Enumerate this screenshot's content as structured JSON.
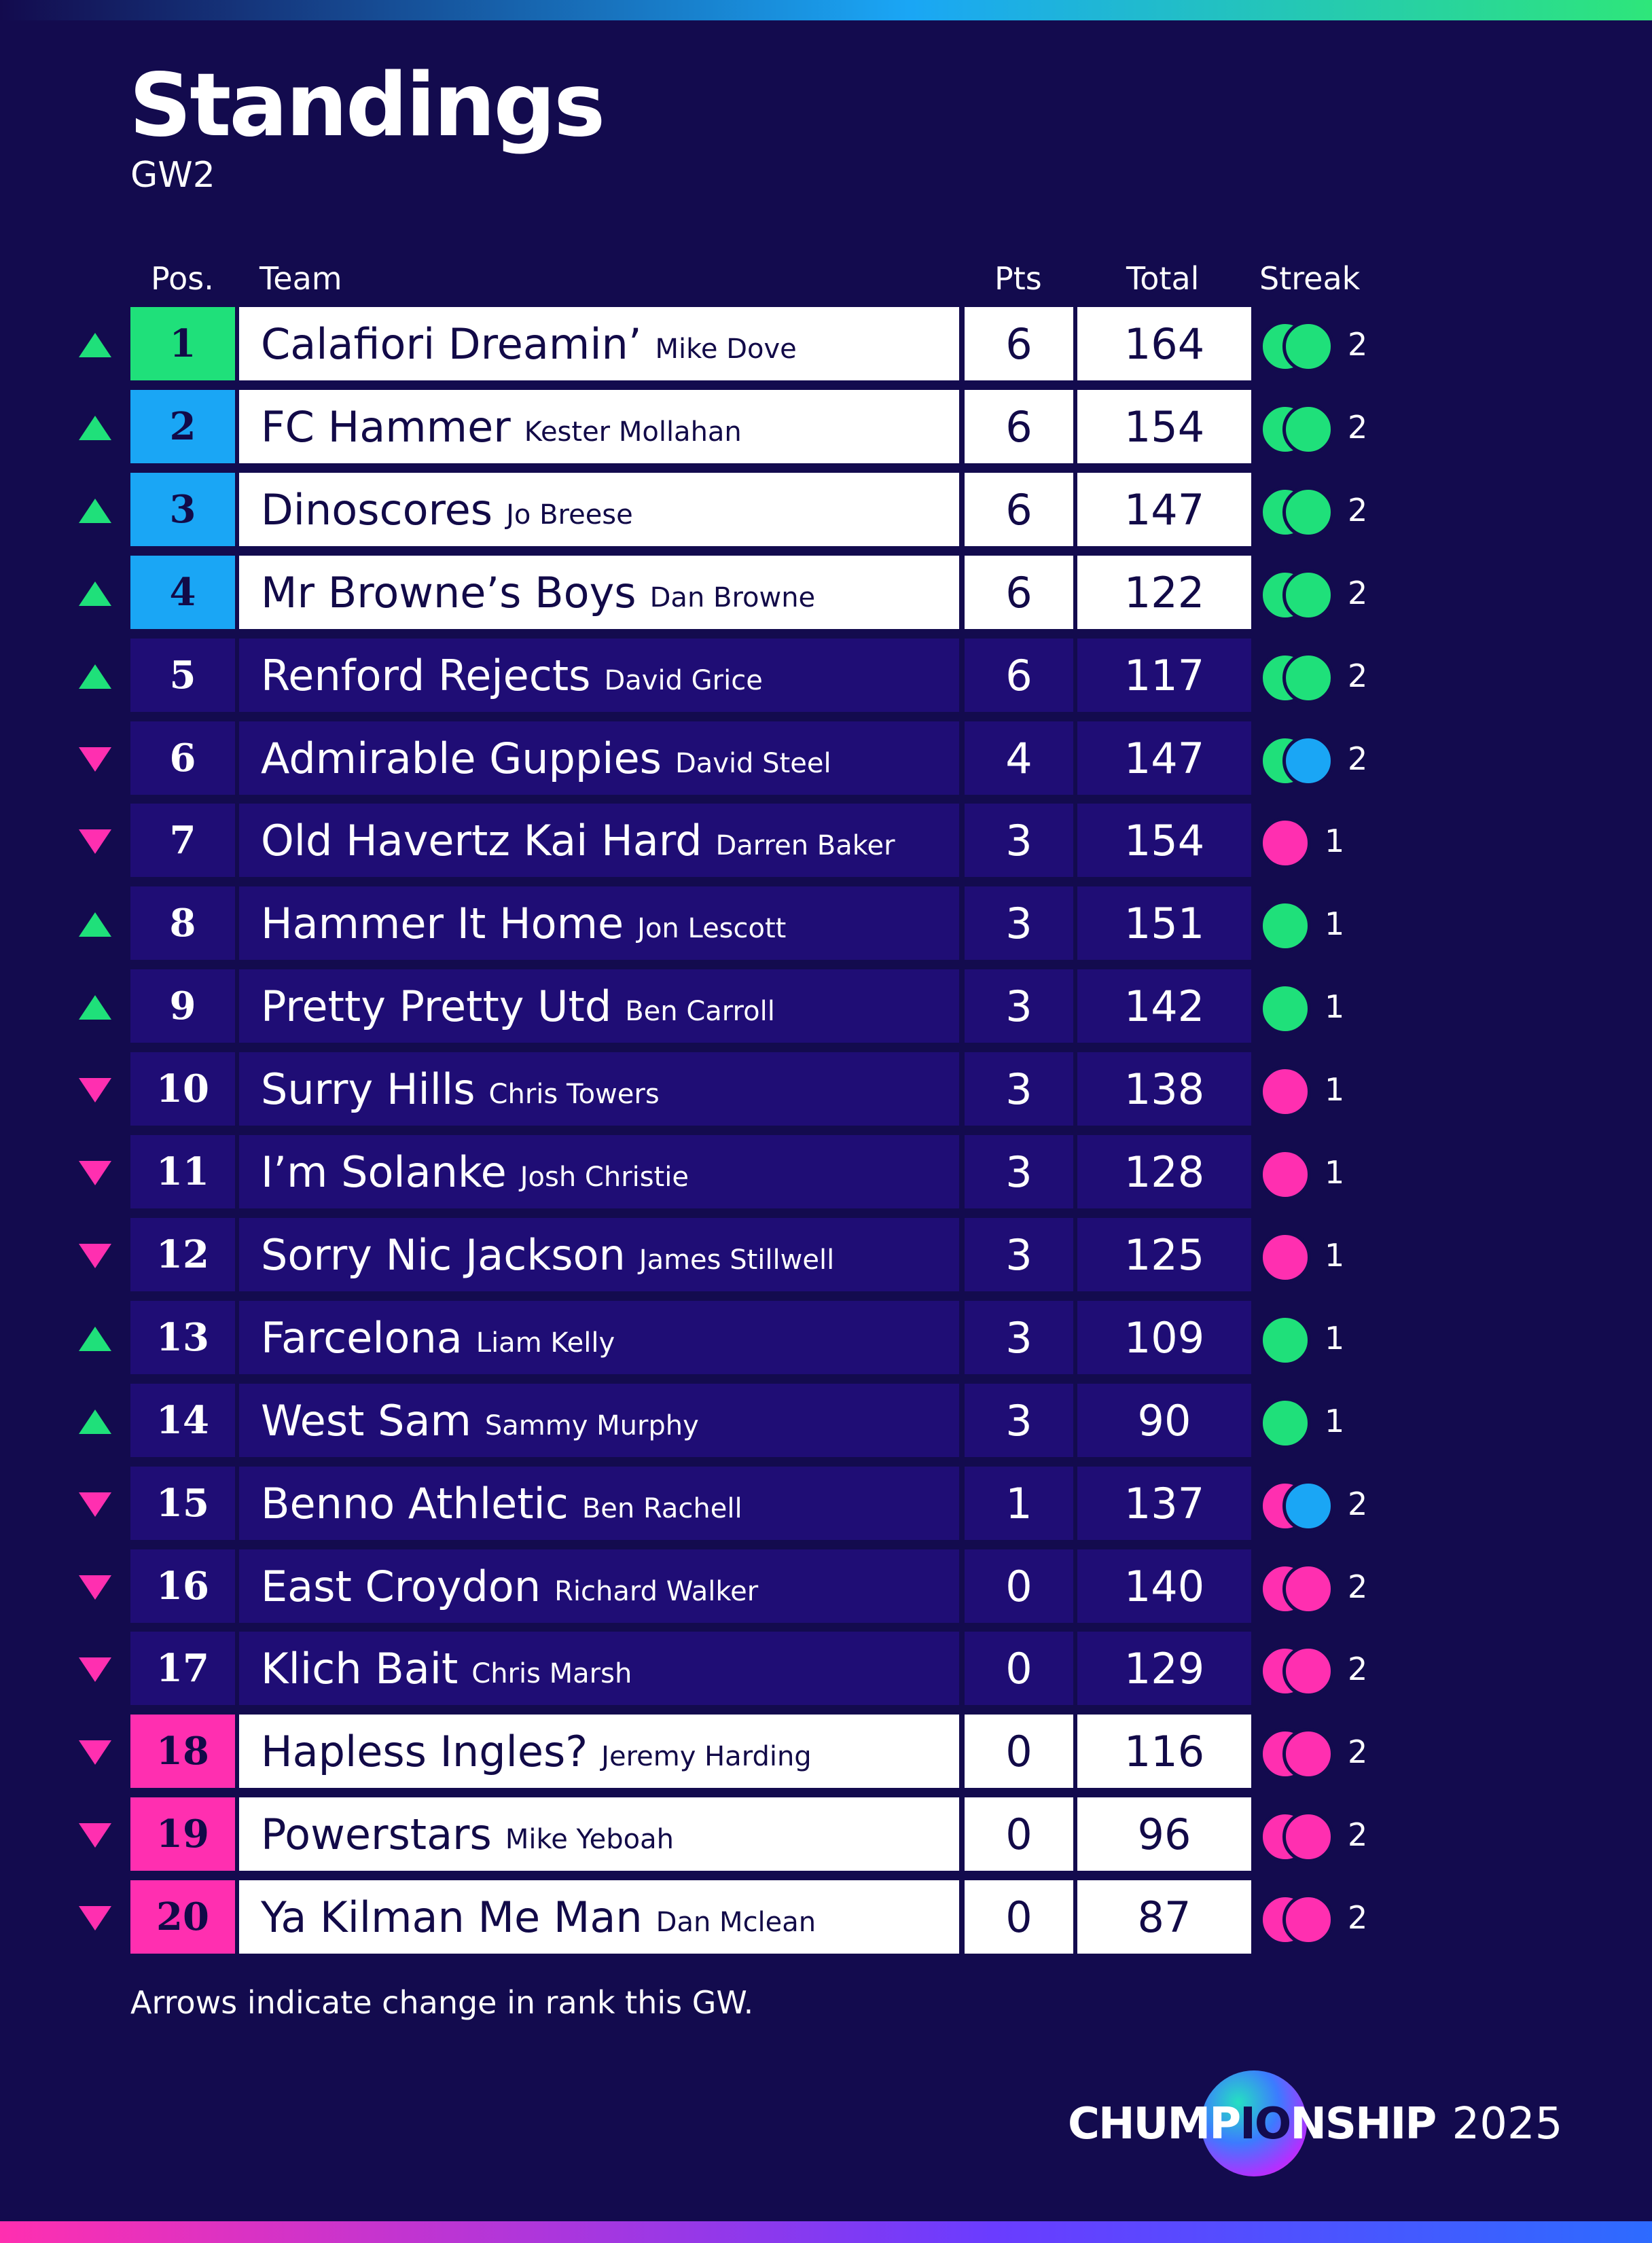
{
  "title": "Standings",
  "subtitle": "GW2",
  "headers": {
    "pos": "Pos.",
    "team": "Team",
    "pts": "Pts",
    "total": "Total",
    "streak": "Streak"
  },
  "colors": {
    "background": "#130b4e",
    "green": "#1fe07a",
    "blue": "#1aa6f5",
    "pink": "#ff2fb0",
    "row_dark": "#1f0d75",
    "row_light": "#ffffff"
  },
  "rows": [
    {
      "pos": "1",
      "team": "Calafiori Dreamin’",
      "manager": "Mike Dove",
      "pts": "6",
      "total": "164",
      "change": "up",
      "zone": "champion",
      "streak_results": [
        "win",
        "win"
      ],
      "streak": "2"
    },
    {
      "pos": "2",
      "team": "FC Hammer",
      "manager": "Kester Mollahan",
      "pts": "6",
      "total": "154",
      "change": "up",
      "zone": "qualify",
      "streak_results": [
        "win",
        "win"
      ],
      "streak": "2"
    },
    {
      "pos": "3",
      "team": "Dinoscores",
      "manager": "Jo Breese",
      "pts": "6",
      "total": "147",
      "change": "up",
      "zone": "qualify",
      "streak_results": [
        "win",
        "win"
      ],
      "streak": "2"
    },
    {
      "pos": "4",
      "team": "Mr Browne’s Boys",
      "manager": "Dan Browne",
      "pts": "6",
      "total": "122",
      "change": "up",
      "zone": "qualify",
      "streak_results": [
        "win",
        "win"
      ],
      "streak": "2"
    },
    {
      "pos": "5",
      "team": "Renford Rejects",
      "manager": "David Grice",
      "pts": "6",
      "total": "117",
      "change": "up",
      "zone": "none",
      "streak_results": [
        "win",
        "win"
      ],
      "streak": "2"
    },
    {
      "pos": "6",
      "team": "Admirable Guppies",
      "manager": "David Steel",
      "pts": "4",
      "total": "147",
      "change": "down",
      "zone": "none",
      "streak_results": [
        "win",
        "draw"
      ],
      "streak": "2"
    },
    {
      "pos": "7",
      "team": "Old Havertz Kai Hard",
      "manager": "Darren Baker",
      "pts": "3",
      "total": "154",
      "change": "down",
      "zone": "none",
      "streak_results": [
        "loss"
      ],
      "streak": "1"
    },
    {
      "pos": "8",
      "team": "Hammer It Home",
      "manager": "Jon Lescott",
      "pts": "3",
      "total": "151",
      "change": "up",
      "zone": "none",
      "streak_results": [
        "win"
      ],
      "streak": "1"
    },
    {
      "pos": "9",
      "team": "Pretty Pretty Utd",
      "manager": "Ben Carroll",
      "pts": "3",
      "total": "142",
      "change": "up",
      "zone": "none",
      "streak_results": [
        "win"
      ],
      "streak": "1"
    },
    {
      "pos": "10",
      "team": "Surry Hills",
      "manager": "Chris Towers",
      "pts": "3",
      "total": "138",
      "change": "down",
      "zone": "none",
      "streak_results": [
        "loss"
      ],
      "streak": "1"
    },
    {
      "pos": "11",
      "team": "I’m Solanke",
      "manager": "Josh Christie",
      "pts": "3",
      "total": "128",
      "change": "down",
      "zone": "none",
      "streak_results": [
        "loss"
      ],
      "streak": "1"
    },
    {
      "pos": "12",
      "team": "Sorry Nic Jackson",
      "manager": "James Stillwell",
      "pts": "3",
      "total": "125",
      "change": "down",
      "zone": "none",
      "streak_results": [
        "loss"
      ],
      "streak": "1"
    },
    {
      "pos": "13",
      "team": "Farcelona",
      "manager": "Liam Kelly",
      "pts": "3",
      "total": "109",
      "change": "up",
      "zone": "none",
      "streak_results": [
        "win"
      ],
      "streak": "1"
    },
    {
      "pos": "14",
      "team": "West Sam",
      "manager": "Sammy Murphy",
      "pts": "3",
      "total": "90",
      "change": "up",
      "zone": "none",
      "streak_results": [
        "win"
      ],
      "streak": "1"
    },
    {
      "pos": "15",
      "team": "Benno Athletic",
      "manager": "Ben Rachell",
      "pts": "1",
      "total": "137",
      "change": "down",
      "zone": "none",
      "streak_results": [
        "loss",
        "draw"
      ],
      "streak": "2"
    },
    {
      "pos": "16",
      "team": "East Croydon",
      "manager": "Richard Walker",
      "pts": "0",
      "total": "140",
      "change": "down",
      "zone": "none",
      "streak_results": [
        "loss",
        "loss"
      ],
      "streak": "2"
    },
    {
      "pos": "17",
      "team": "Klich Bait",
      "manager": "Chris Marsh",
      "pts": "0",
      "total": "129",
      "change": "down",
      "zone": "none",
      "streak_results": [
        "loss",
        "loss"
      ],
      "streak": "2"
    },
    {
      "pos": "18",
      "team": "Hapless Ingles?",
      "manager": "Jeremy Harding",
      "pts": "0",
      "total": "116",
      "change": "down",
      "zone": "relegation",
      "streak_results": [
        "loss",
        "loss"
      ],
      "streak": "2"
    },
    {
      "pos": "19",
      "team": "Powerstars",
      "manager": "Mike Yeboah",
      "pts": "0",
      "total": "96",
      "change": "down",
      "zone": "relegation",
      "streak_results": [
        "loss",
        "loss"
      ],
      "streak": "2"
    },
    {
      "pos": "20",
      "team": "Ya Kilman Me Man",
      "manager": "Dan Mclean",
      "pts": "0",
      "total": "87",
      "change": "down",
      "zone": "relegation",
      "streak_results": [
        "loss",
        "loss"
      ],
      "streak": "2"
    }
  ],
  "footnote": "Arrows indicate change in rank this GW.",
  "logo": {
    "part1": "CHUMP",
    "part2": "IO",
    "part3": "NSHIP",
    "year": "2025"
  }
}
